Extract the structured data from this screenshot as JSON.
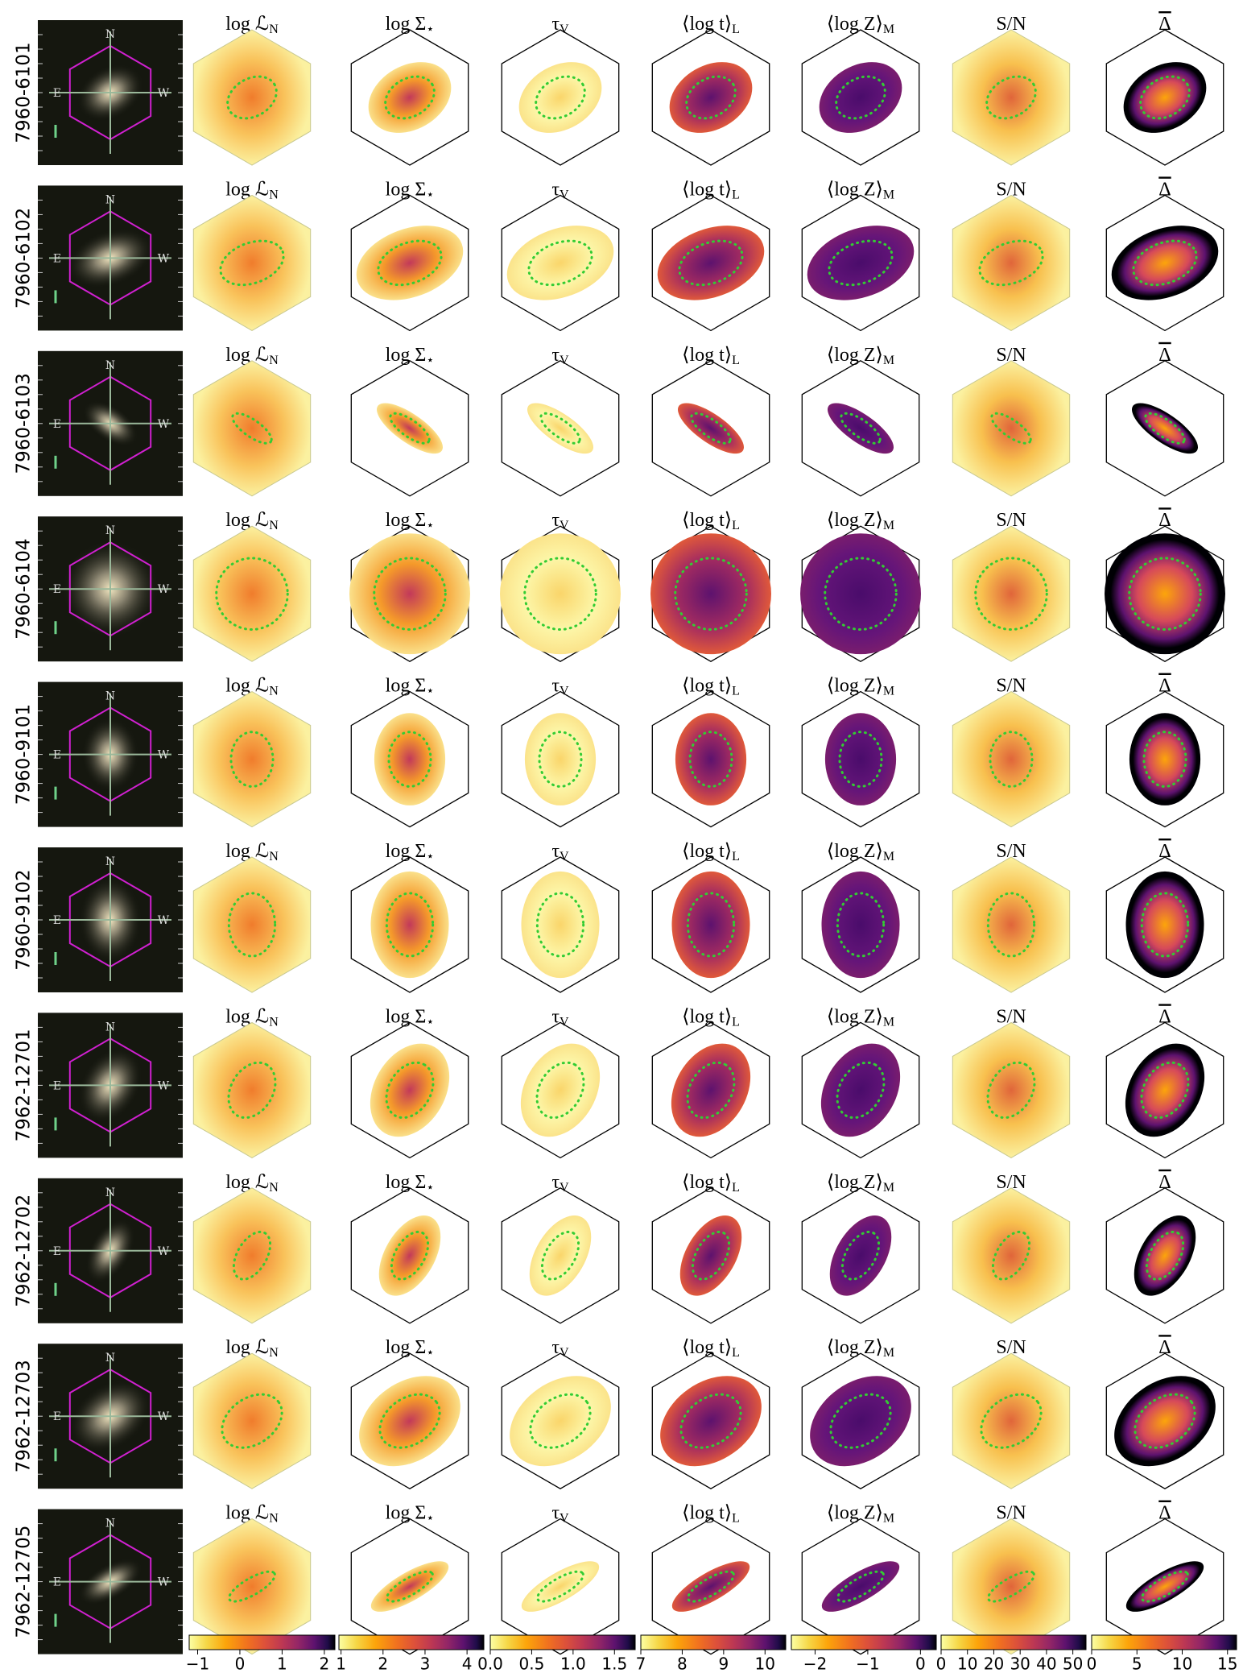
{
  "rows": [
    {
      "id": "7960-6101"
    },
    {
      "id": "7960-6102"
    },
    {
      "id": "7960-6103"
    },
    {
      "id": "7960-6104"
    },
    {
      "id": "7960-9101"
    },
    {
      "id": "7960-9102"
    },
    {
      "id": "7962-12701"
    },
    {
      "id": "7962-12702"
    },
    {
      "id": "7962-12703"
    },
    {
      "id": "7962-12705"
    }
  ],
  "thumb_labels": [
    "N",
    "E",
    "W"
  ],
  "panels": [
    {
      "main": "log ℒ",
      "sub": "N"
    },
    {
      "main": "log Σ",
      "sub": "⋆"
    },
    {
      "main": "τ",
      "sub": "V"
    },
    {
      "main": "⟨log t⟩",
      "sub": "L"
    },
    {
      "main": "⟨log Z⟩",
      "sub": "M"
    },
    {
      "main": "S/N"
    },
    {
      "main": "Δ",
      "overline": true
    }
  ],
  "colorbars": [
    {
      "lim": [
        -1.2,
        2.25
      ],
      "ticks": [
        {
          "value": -1,
          "label": "−1"
        },
        0,
        1,
        2
      ]
    },
    {
      "lim": [
        0.95,
        4.4
      ],
      "ticks": [
        1,
        2,
        3,
        4
      ]
    },
    {
      "lim": [
        0,
        1.75
      ],
      "ticks": [
        {
          "value": 0,
          "label": "0.0"
        },
        {
          "value": 0.5,
          "label": "0.5"
        },
        {
          "value": 1,
          "label": "1.0"
        },
        {
          "value": 1.5,
          "label": "1.5"
        }
      ]
    },
    {
      "lim": [
        7,
        10.5
      ],
      "ticks": [
        7,
        8,
        9,
        10
      ]
    },
    {
      "lim": [
        -2.45,
        0.3
      ],
      "ticks": [
        {
          "value": -2,
          "label": "−2"
        },
        {
          "value": -1,
          "label": "−1"
        },
        0
      ]
    },
    {
      "lim": [
        0,
        55
      ],
      "ticks": [
        0,
        10,
        20,
        30,
        40,
        50
      ]
    },
    {
      "lim": [
        0,
        16
      ],
      "ticks": [
        0,
        5,
        10,
        15
      ]
    }
  ]
}
